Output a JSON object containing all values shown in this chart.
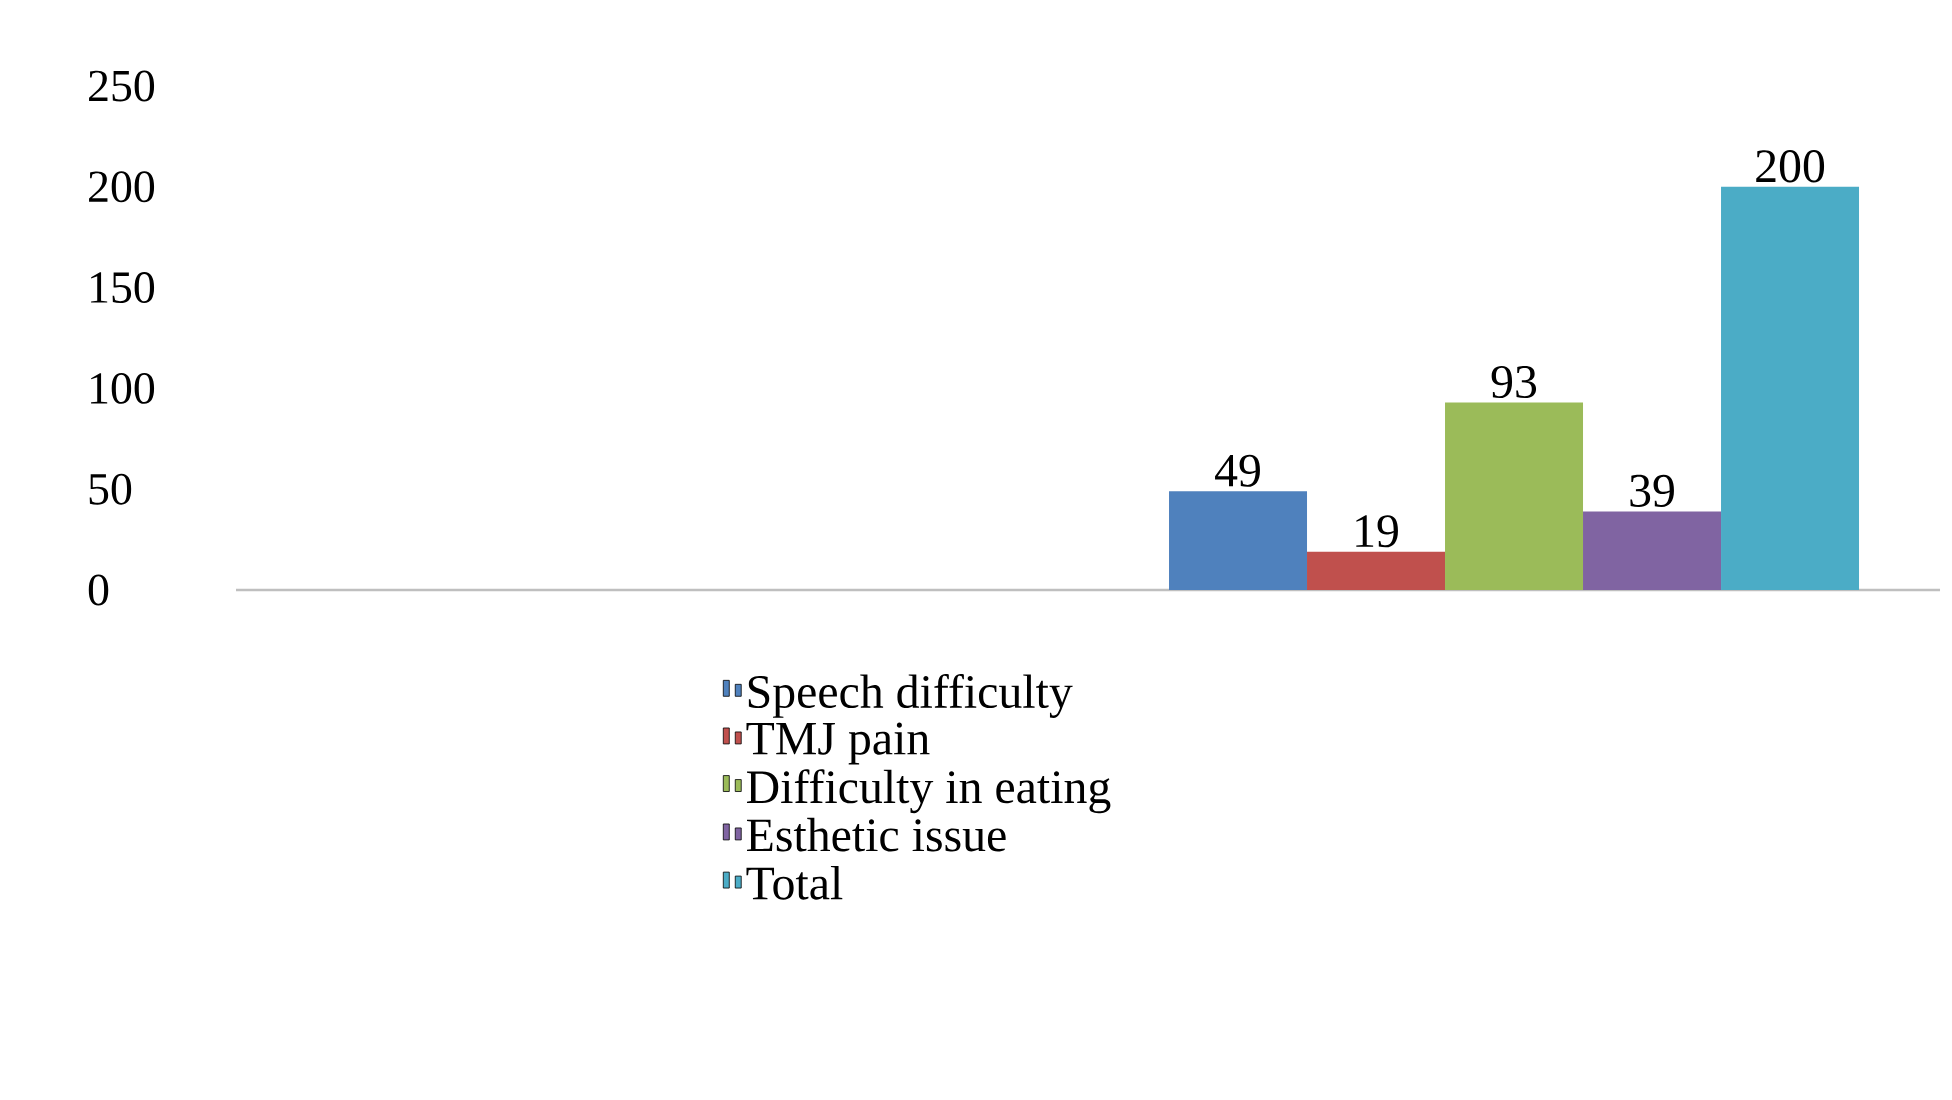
{
  "chart_data": {
    "type": "bar",
    "categories": [
      null,
      null
    ],
    "series": [
      {
        "name": "Speech difficulty",
        "color": "#4f81bd",
        "values": [
          null,
          49
        ]
      },
      {
        "name": "TMJ pain",
        "color": "#c0504d",
        "values": [
          null,
          19
        ]
      },
      {
        "name": "Difficulty in eating",
        "color": "#9bbb59",
        "values": [
          null,
          93
        ]
      },
      {
        "name": "Esthetic issue",
        "color": "#8064a2",
        "values": [
          null,
          39
        ]
      },
      {
        "name": "Total",
        "color": "#4bacc6",
        "values": [
          null,
          200
        ]
      }
    ],
    "ylim": [
      0,
      250
    ],
    "yticks": [
      0,
      50,
      100,
      150,
      200,
      250
    ],
    "data_labels": true,
    "legend": "bottom",
    "grid": false
  }
}
